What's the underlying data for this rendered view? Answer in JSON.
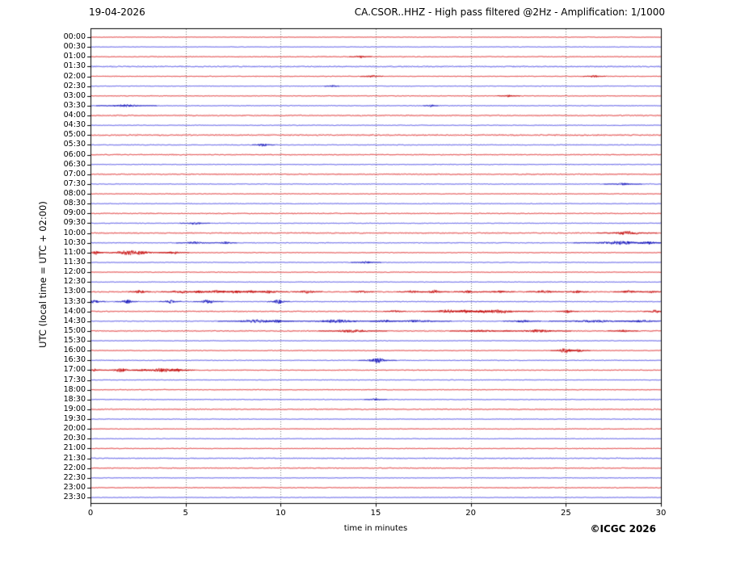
{
  "header": {
    "date": "19-04-2026",
    "title": "CA.CSOR..HHZ - High pass filtered @2Hz - Amplification: 1/1000"
  },
  "footer": {
    "copyright": "©ICGC 2026"
  },
  "chart_data": {
    "type": "line",
    "subtype": "helicorder-drum-plot",
    "title": "CA.CSOR..HHZ - High pass filtered @2Hz - Amplification: 1/1000",
    "date": "19-04-2026",
    "xlabel": "time in minutes",
    "ylabel": "UTC (local time = UTC + 02:00)",
    "x_range": [
      0,
      30
    ],
    "x_ticks": [
      0,
      5,
      10,
      15,
      20,
      25,
      30
    ],
    "minutes_per_row": 30,
    "grid": "vertical dotted lines at 5-minute intervals",
    "legend_position": "none",
    "colors": {
      "hour_trace_red": "#e03c3c",
      "half_hour_trace_blue": "#5a5ae6",
      "event_red": "#be0000",
      "event_blue": "#0a0ab4",
      "grid": "#555555",
      "axis": "#000000",
      "background": "#ffffff"
    },
    "events_format": "[start_minute, half_width_minutes, relative_amplitude]",
    "rows": [
      {
        "label": "00:00",
        "color": "red",
        "noise": 0.45,
        "events": []
      },
      {
        "label": "00:30",
        "color": "blue",
        "noise": 0.45,
        "events": []
      },
      {
        "label": "01:00",
        "color": "red",
        "noise": 0.6,
        "events": [
          [
            14.2,
            0.3,
            1.5
          ]
        ]
      },
      {
        "label": "01:30",
        "color": "blue",
        "noise": 0.85,
        "events": []
      },
      {
        "label": "02:00",
        "color": "red",
        "noise": 0.5,
        "events": [
          [
            14.8,
            0.3,
            1.3
          ],
          [
            26.5,
            0.3,
            1.2
          ]
        ]
      },
      {
        "label": "02:30",
        "color": "blue",
        "noise": 0.5,
        "events": [
          [
            12.7,
            0.2,
            1.5
          ]
        ]
      },
      {
        "label": "03:00",
        "color": "red",
        "noise": 0.55,
        "events": [
          [
            22.0,
            0.3,
            1.2
          ]
        ]
      },
      {
        "label": "03:30",
        "color": "blue",
        "noise": 0.55,
        "events": [
          [
            1.9,
            0.8,
            1.5
          ],
          [
            17.9,
            0.2,
            1.5
          ]
        ]
      },
      {
        "label": "04:00",
        "color": "red",
        "noise": 0.75,
        "events": []
      },
      {
        "label": "04:30",
        "color": "blue",
        "noise": 0.55,
        "events": []
      },
      {
        "label": "05:00",
        "color": "red",
        "noise": 0.85,
        "events": []
      },
      {
        "label": "05:30",
        "color": "blue",
        "noise": 0.6,
        "events": [
          [
            9.1,
            0.3,
            2.0
          ]
        ]
      },
      {
        "label": "06:00",
        "color": "red",
        "noise": 0.65,
        "events": []
      },
      {
        "label": "06:30",
        "color": "blue",
        "noise": 0.55,
        "events": []
      },
      {
        "label": "07:00",
        "color": "red",
        "noise": 0.75,
        "events": []
      },
      {
        "label": "07:30",
        "color": "blue",
        "noise": 0.55,
        "events": [
          [
            28.0,
            0.5,
            1.3
          ]
        ]
      },
      {
        "label": "08:00",
        "color": "red",
        "noise": 0.55,
        "events": []
      },
      {
        "label": "08:30",
        "color": "blue",
        "noise": 0.55,
        "events": []
      },
      {
        "label": "09:00",
        "color": "red",
        "noise": 0.65,
        "events": []
      },
      {
        "label": "09:30",
        "color": "blue",
        "noise": 0.55,
        "events": [
          [
            5.5,
            0.4,
            1.8
          ]
        ]
      },
      {
        "label": "10:00",
        "color": "red",
        "noise": 0.75,
        "events": [
          [
            28.2,
            0.8,
            2.2
          ]
        ]
      },
      {
        "label": "10:30",
        "color": "blue",
        "noise": 0.6,
        "events": [
          [
            5.5,
            0.5,
            1.6
          ],
          [
            7.1,
            0.3,
            1.4
          ],
          [
            27.8,
            1.2,
            2.2
          ],
          [
            29.3,
            0.5,
            1.8
          ]
        ]
      },
      {
        "label": "11:00",
        "color": "red",
        "noise": 0.55,
        "events": [
          [
            0.3,
            0.2,
            2.5
          ],
          [
            2.2,
            1.0,
            3.0
          ],
          [
            4.4,
            0.4,
            1.5
          ]
        ]
      },
      {
        "label": "11:30",
        "color": "blue",
        "noise": 0.55,
        "events": [
          [
            14.5,
            0.4,
            1.4
          ]
        ]
      },
      {
        "label": "12:00",
        "color": "red",
        "noise": 0.55,
        "events": []
      },
      {
        "label": "12:30",
        "color": "blue",
        "noise": 0.5,
        "events": []
      },
      {
        "label": "13:00",
        "color": "red",
        "noise": 0.8,
        "events": [
          [
            2.6,
            0.3,
            2.2
          ],
          [
            4.7,
            0.5,
            2.0
          ],
          [
            5.7,
            0.3,
            1.8
          ],
          [
            6.7,
            0.6,
            2.0
          ],
          [
            7.6,
            0.5,
            1.8
          ],
          [
            8.4,
            0.4,
            1.8
          ],
          [
            9.4,
            0.5,
            1.8
          ],
          [
            11.4,
            0.4,
            2.2
          ],
          [
            14.3,
            0.3,
            1.6
          ],
          [
            16.9,
            0.4,
            1.8
          ],
          [
            18.1,
            0.4,
            2.0
          ],
          [
            19.9,
            0.4,
            1.6
          ],
          [
            21.5,
            0.4,
            1.6
          ],
          [
            23.9,
            0.5,
            1.8
          ],
          [
            25.6,
            0.3,
            1.6
          ],
          [
            28.3,
            0.4,
            1.8
          ],
          [
            29.5,
            0.3,
            1.6
          ]
        ]
      },
      {
        "label": "13:30",
        "color": "blue",
        "noise": 0.6,
        "events": [
          [
            0.2,
            0.3,
            2.0
          ],
          [
            1.9,
            0.3,
            2.5
          ],
          [
            4.2,
            0.3,
            2.2
          ],
          [
            6.2,
            0.4,
            2.5
          ],
          [
            9.9,
            0.3,
            2.8
          ]
        ]
      },
      {
        "label": "14:00",
        "color": "red",
        "noise": 0.7,
        "events": [
          [
            16.0,
            0.3,
            1.5
          ],
          [
            18.8,
            0.7,
            2.2
          ],
          [
            19.7,
            0.5,
            2.0
          ],
          [
            20.6,
            0.5,
            2.0
          ],
          [
            21.5,
            0.9,
            2.2
          ],
          [
            25.1,
            0.3,
            1.6
          ],
          [
            29.7,
            0.3,
            1.8
          ]
        ]
      },
      {
        "label": "14:30",
        "color": "blue",
        "noise": 0.6,
        "events": [
          [
            8.7,
            1.0,
            2.0
          ],
          [
            9.8,
            0.4,
            1.8
          ],
          [
            13.0,
            1.2,
            2.0
          ],
          [
            15.5,
            0.4,
            1.5
          ],
          [
            17.2,
            0.9,
            1.6
          ],
          [
            22.7,
            0.5,
            1.6
          ],
          [
            26.5,
            1.2,
            1.6
          ],
          [
            29.0,
            0.7,
            1.5
          ]
        ]
      },
      {
        "label": "15:00",
        "color": "red",
        "noise": 0.75,
        "events": [
          [
            13.8,
            0.9,
            1.8
          ],
          [
            20.5,
            0.8,
            1.5
          ],
          [
            23.5,
            0.9,
            1.8
          ],
          [
            28.0,
            0.4,
            1.4
          ]
        ]
      },
      {
        "label": "15:30",
        "color": "blue",
        "noise": 0.5,
        "events": []
      },
      {
        "label": "16:00",
        "color": "red",
        "noise": 0.55,
        "events": [
          [
            25.0,
            0.4,
            3.0
          ],
          [
            25.7,
            0.3,
            2.0
          ]
        ]
      },
      {
        "label": "16:30",
        "color": "blue",
        "noise": 0.55,
        "events": [
          [
            15.1,
            0.5,
            3.0
          ]
        ]
      },
      {
        "label": "17:00",
        "color": "red",
        "noise": 0.6,
        "events": [
          [
            0.2,
            0.2,
            1.8
          ],
          [
            1.6,
            0.5,
            2.2
          ],
          [
            2.8,
            0.3,
            1.6
          ],
          [
            3.9,
            0.8,
            2.6
          ],
          [
            4.6,
            0.3,
            2.0
          ]
        ]
      },
      {
        "label": "17:30",
        "color": "blue",
        "noise": 0.5,
        "events": []
      },
      {
        "label": "18:00",
        "color": "red",
        "noise": 0.55,
        "events": []
      },
      {
        "label": "18:30",
        "color": "blue",
        "noise": 0.55,
        "events": [
          [
            15.0,
            0.3,
            1.3
          ]
        ]
      },
      {
        "label": "19:00",
        "color": "red",
        "noise": 0.75,
        "events": []
      },
      {
        "label": "19:30",
        "color": "blue",
        "noise": 0.5,
        "events": []
      },
      {
        "label": "20:00",
        "color": "red",
        "noise": 0.55,
        "events": []
      },
      {
        "label": "20:30",
        "color": "blue",
        "noise": 0.5,
        "events": []
      },
      {
        "label": "21:00",
        "color": "red",
        "noise": 0.55,
        "events": []
      },
      {
        "label": "21:30",
        "color": "blue",
        "noise": 0.7,
        "events": []
      },
      {
        "label": "22:00",
        "color": "red",
        "noise": 0.65,
        "events": []
      },
      {
        "label": "22:30",
        "color": "blue",
        "noise": 0.5,
        "events": []
      },
      {
        "label": "23:00",
        "color": "red",
        "noise": 0.6,
        "events": []
      },
      {
        "label": "23:30",
        "color": "blue",
        "noise": 0.5,
        "events": []
      }
    ]
  }
}
